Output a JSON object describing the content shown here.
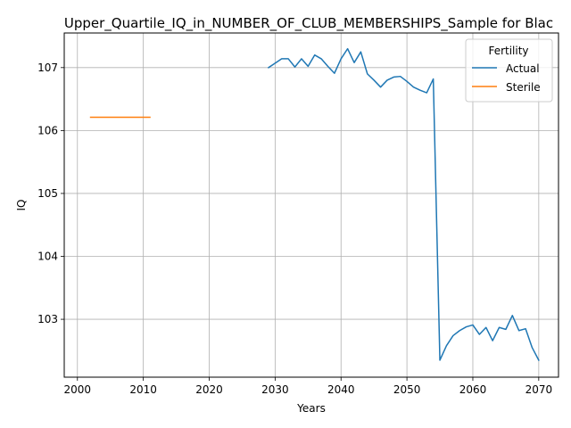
{
  "chart_data": {
    "type": "line",
    "title": "Upper_Quartile_IQ_in_NUMBER_OF_CLUB_MEMBERSHIPS_Sample for Blac",
    "xlabel": "Years",
    "ylabel": "IQ",
    "xlim": [
      1998,
      2073
    ],
    "ylim": [
      102.08,
      107.55
    ],
    "xticks": [
      2000,
      2010,
      2020,
      2030,
      2040,
      2050,
      2060,
      2070
    ],
    "yticks": [
      103,
      104,
      105,
      106,
      107
    ],
    "grid": true,
    "legend": {
      "title": "Fertility",
      "placement": "top-right"
    },
    "series": [
      {
        "name": "Actual",
        "color": "#1f77b4",
        "x": [
          2029,
          2030,
          2031,
          2032,
          2033,
          2034,
          2035,
          2036,
          2037,
          2038,
          2039,
          2040,
          2041,
          2042,
          2043,
          2044,
          2045,
          2046,
          2047,
          2048,
          2049,
          2050,
          2051,
          2052,
          2053,
          2054,
          2055,
          2056,
          2057,
          2058,
          2059,
          2060,
          2061,
          2062,
          2063,
          2064,
          2065,
          2066,
          2067,
          2068,
          2069,
          2070
        ],
        "y": [
          107.0,
          107.07,
          107.14,
          107.14,
          107.01,
          107.14,
          107.02,
          107.2,
          107.14,
          107.02,
          106.91,
          107.14,
          107.3,
          107.08,
          107.25,
          106.9,
          106.8,
          106.69,
          106.8,
          106.85,
          106.86,
          106.78,
          106.69,
          106.64,
          106.6,
          106.82,
          102.35,
          102.58,
          102.74,
          102.82,
          102.88,
          102.91,
          102.76,
          102.87,
          102.66,
          102.87,
          102.84,
          103.06,
          102.82,
          102.85,
          102.55,
          102.35
        ]
      },
      {
        "name": "Sterile",
        "color": "#ff7f0e",
        "x": [
          2002,
          2011
        ],
        "y": [
          106.21,
          106.21
        ]
      }
    ]
  }
}
